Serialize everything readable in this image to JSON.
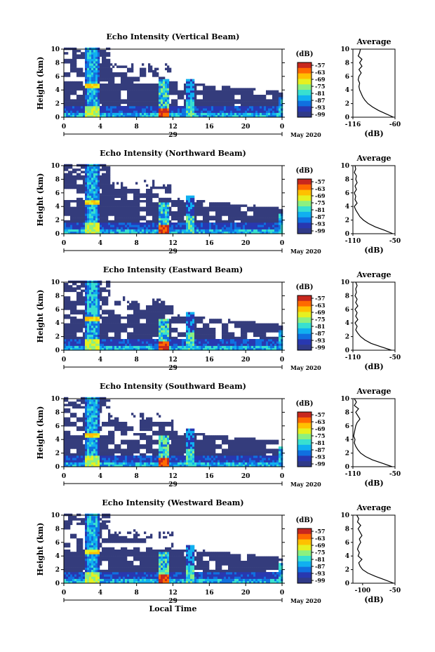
{
  "figure": {
    "date_label": "May 2020",
    "xlabel_bottom": "Local Time"
  },
  "chart_data": [
    {
      "type": "heatmap",
      "title": "Echo Intensity (Vertical Beam)",
      "xlabel": "",
      "ylabel": "Height (km)",
      "xlim": [
        0,
        24
      ],
      "ylim": [
        0,
        10
      ],
      "xticks": [
        "0",
        "4",
        "8",
        "12",
        "16",
        "20",
        "0"
      ],
      "yticks": [
        "0",
        "2",
        "4",
        "6",
        "8",
        "10"
      ],
      "day_label": "29",
      "colorbar": {
        "unit": "(dB)",
        "ticks": [
          "-57",
          "-63",
          "-69",
          "-75",
          "-81",
          "-87",
          "-93",
          "-99"
        ]
      },
      "average": {
        "title": "Average",
        "xlabel": "(dB)",
        "xticks": [
          "-116",
          "-60"
        ],
        "xlim": [
          -116,
          -60
        ],
        "height": [
          0,
          0.5,
          1,
          1.5,
          2,
          2.5,
          3,
          3.5,
          4,
          4.5,
          5,
          5.5,
          6,
          6.5,
          7,
          7.5,
          8,
          8.5,
          9,
          9.5,
          10
        ],
        "db": [
          -62,
          -72,
          -82,
          -90,
          -96,
          -100,
          -103,
          -105,
          -107,
          -108,
          -107,
          -109,
          -108,
          -105,
          -108,
          -104,
          -107,
          -104,
          -109,
          -107,
          -106
        ]
      }
    },
    {
      "type": "heatmap",
      "title": "Echo Intensity (Northward Beam)",
      "xlabel": "",
      "ylabel": "Height (km)",
      "xlim": [
        0,
        24
      ],
      "ylim": [
        0,
        10
      ],
      "xticks": [
        "0",
        "4",
        "8",
        "12",
        "16",
        "20",
        "0"
      ],
      "yticks": [
        "0",
        "2",
        "4",
        "6",
        "8",
        "10"
      ],
      "day_label": "29",
      "colorbar": {
        "unit": "(dB)",
        "ticks": [
          "-57",
          "-63",
          "-69",
          "-75",
          "-81",
          "-87",
          "-93",
          "-99"
        ]
      },
      "average": {
        "title": "Average",
        "xlabel": "(dB)",
        "xticks": [
          "-110",
          "-50"
        ],
        "xlim": [
          -110,
          -50
        ],
        "height": [
          0,
          0.5,
          1,
          1.5,
          2,
          2.5,
          3,
          3.5,
          4,
          4.5,
          5,
          5.5,
          6,
          6.5,
          7,
          7.5,
          8,
          8.5,
          9,
          9.5,
          10
        ],
        "db": [
          -53,
          -65,
          -78,
          -88,
          -95,
          -100,
          -103,
          -106,
          -108,
          -104,
          -107,
          -106,
          -108,
          -105,
          -107,
          -104,
          -106,
          -105,
          -108,
          -106,
          -107
        ]
      }
    },
    {
      "type": "heatmap",
      "title": "Echo Intensity (Eastward Beam)",
      "xlabel": "",
      "ylabel": "Height (km)",
      "xlim": [
        0,
        24
      ],
      "ylim": [
        0,
        10
      ],
      "xticks": [
        "0",
        "4",
        "8",
        "12",
        "16",
        "20",
        "0"
      ],
      "yticks": [
        "0",
        "2",
        "4",
        "6",
        "8",
        "10"
      ],
      "day_label": "29",
      "colorbar": {
        "unit": "(dB)",
        "ticks": [
          "-57",
          "-63",
          "-69",
          "-75",
          "-81",
          "-87",
          "-93",
          "-99"
        ]
      },
      "average": {
        "title": "Average",
        "xlabel": "(dB)",
        "xticks": [
          "-110",
          "-50"
        ],
        "xlim": [
          -110,
          -50
        ],
        "height": [
          0,
          0.5,
          1,
          1.5,
          2,
          2.5,
          3,
          3.5,
          4,
          4.5,
          5,
          5.5,
          6,
          6.5,
          7,
          7.5,
          8,
          8.5,
          9,
          9.5,
          10
        ],
        "db": [
          -55,
          -70,
          -84,
          -93,
          -99,
          -103,
          -106,
          -104,
          -107,
          -103,
          -106,
          -104,
          -107,
          -103,
          -106,
          -104,
          -107,
          -105,
          -106,
          -104,
          -106
        ]
      }
    },
    {
      "type": "heatmap",
      "title": "Echo Intensity (Southward Beam)",
      "xlabel": "",
      "ylabel": "Height (km)",
      "xlim": [
        0,
        24
      ],
      "ylim": [
        0,
        10
      ],
      "xticks": [
        "0",
        "4",
        "8",
        "12",
        "16",
        "20",
        "0"
      ],
      "yticks": [
        "0",
        "2",
        "4",
        "6",
        "8",
        "10"
      ],
      "day_label": "29",
      "colorbar": {
        "unit": "(dB)",
        "ticks": [
          "-57",
          "-63",
          "-69",
          "-75",
          "-81",
          "-87",
          "-93",
          "-99"
        ]
      },
      "average": {
        "title": "Average",
        "xlabel": "(dB)",
        "xticks": [
          "-110",
          "-50"
        ],
        "xlim": [
          -110,
          -50
        ],
        "height": [
          0,
          0.5,
          1,
          1.5,
          2,
          2.5,
          3,
          3.5,
          4,
          4.5,
          5,
          5.5,
          6,
          6.5,
          7,
          7.5,
          8,
          8.5,
          9,
          9.5,
          10
        ],
        "db": [
          -54,
          -68,
          -82,
          -92,
          -99,
          -103,
          -106,
          -108,
          -107,
          -109,
          -108,
          -107,
          -106,
          -104,
          -100,
          -103,
          -106,
          -102,
          -108,
          -105,
          -108
        ]
      }
    },
    {
      "type": "heatmap",
      "title": "Echo Intensity (Westward Beam)",
      "xlabel": "Local Time",
      "ylabel": "Height (km)",
      "xlim": [
        0,
        24
      ],
      "ylim": [
        0,
        10
      ],
      "xticks": [
        "0",
        "4",
        "8",
        "12",
        "16",
        "20",
        "0"
      ],
      "yticks": [
        "0",
        "2",
        "4",
        "6",
        "8",
        "10"
      ],
      "day_label": "29",
      "colorbar": {
        "unit": "(dB)",
        "ticks": [
          "-57",
          "-63",
          "-69",
          "-75",
          "-81",
          "-87",
          "-93",
          "-99"
        ]
      },
      "average": {
        "title": "Average",
        "xlabel": "(dB)",
        "xticks": [
          "-100",
          "-50"
        ],
        "xlim": [
          -115,
          -50
        ],
        "height": [
          0,
          0.5,
          1,
          1.5,
          2,
          2.5,
          3,
          3.5,
          4,
          4.5,
          5,
          5.5,
          6,
          6.5,
          7,
          7.5,
          8,
          8.5,
          9,
          9.5,
          10
        ],
        "db": [
          -52,
          -66,
          -80,
          -92,
          -100,
          -104,
          -106,
          -101,
          -107,
          -105,
          -108,
          -106,
          -103,
          -105,
          -101,
          -104,
          -107,
          -103,
          -108,
          -106,
          -109
        ]
      }
    }
  ]
}
